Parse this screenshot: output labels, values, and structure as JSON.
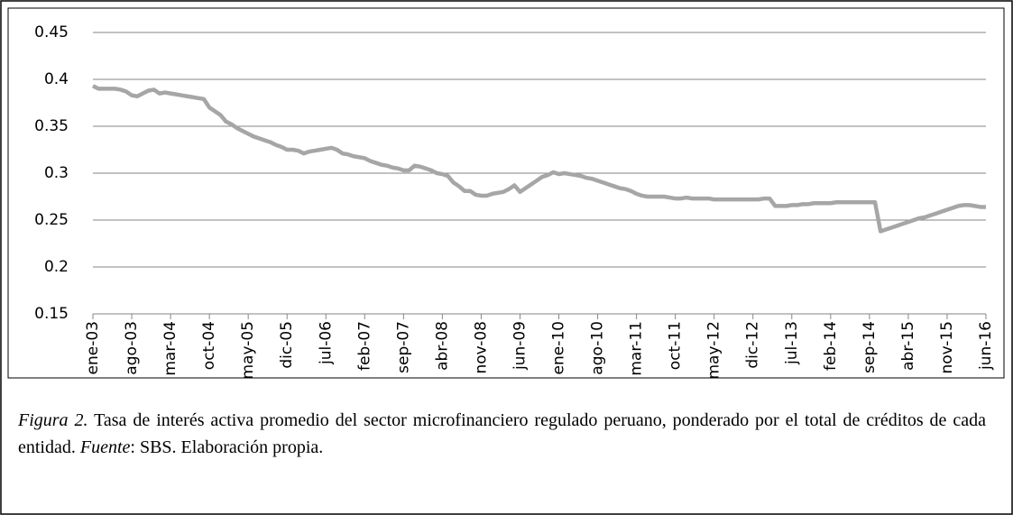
{
  "chart_data": {
    "type": "line",
    "categories": [
      "ene-03",
      null,
      null,
      null,
      null,
      null,
      null,
      "ago-03",
      null,
      null,
      null,
      null,
      null,
      null,
      "mar-04",
      null,
      null,
      null,
      null,
      null,
      null,
      "oct-04",
      null,
      null,
      null,
      null,
      null,
      null,
      "may-05",
      null,
      null,
      null,
      null,
      null,
      null,
      "dic-05",
      null,
      null,
      null,
      null,
      null,
      null,
      "jul-06",
      null,
      null,
      null,
      null,
      null,
      null,
      "feb-07",
      null,
      null,
      null,
      null,
      null,
      null,
      "sep-07",
      null,
      null,
      null,
      null,
      null,
      null,
      "abr-08",
      null,
      null,
      null,
      null,
      null,
      null,
      "nov-08",
      null,
      null,
      null,
      null,
      null,
      null,
      "jun-09",
      null,
      null,
      null,
      null,
      null,
      null,
      "ene-10",
      null,
      null,
      null,
      null,
      null,
      null,
      "ago-10",
      null,
      null,
      null,
      null,
      null,
      null,
      "mar-11",
      null,
      null,
      null,
      null,
      null,
      null,
      "oct-11",
      null,
      null,
      null,
      null,
      null,
      null,
      "may-12",
      null,
      null,
      null,
      null,
      null,
      null,
      "dic-12",
      null,
      null,
      null,
      null,
      null,
      null,
      "jul-13",
      null,
      null,
      null,
      null,
      null,
      null,
      "feb-14",
      null,
      null,
      null,
      null,
      null,
      null,
      "sep-14",
      null,
      null,
      null,
      null,
      null,
      null,
      "abr-15",
      null,
      null,
      null,
      null,
      null,
      null,
      "nov-15",
      null,
      null,
      null,
      null,
      null,
      null,
      "jun-16"
    ],
    "series": [
      {
        "color": "#a6a6a6",
        "values": [
          0.393,
          0.39,
          0.39,
          0.39,
          0.39,
          0.389,
          0.387,
          0.383,
          0.382,
          0.385,
          0.388,
          0.389,
          0.385,
          0.386,
          0.385,
          0.384,
          0.383,
          0.382,
          0.381,
          0.38,
          0.379,
          0.37,
          0.366,
          0.362,
          0.355,
          0.352,
          0.348,
          0.345,
          0.342,
          0.339,
          0.337,
          0.335,
          0.333,
          0.33,
          0.328,
          0.325,
          0.325,
          0.324,
          0.321,
          0.323,
          0.324,
          0.325,
          0.326,
          0.327,
          0.325,
          0.321,
          0.32,
          0.318,
          0.317,
          0.316,
          0.313,
          0.311,
          0.309,
          0.308,
          0.306,
          0.305,
          0.303,
          0.303,
          0.308,
          0.307,
          0.305,
          0.303,
          0.3,
          0.299,
          0.297,
          0.29,
          0.286,
          0.281,
          0.281,
          0.277,
          0.276,
          0.276,
          0.278,
          0.279,
          0.28,
          0.283,
          0.287,
          0.28,
          0.284,
          0.288,
          0.292,
          0.296,
          0.298,
          0.301,
          0.299,
          0.3,
          0.299,
          0.298,
          0.297,
          0.295,
          0.294,
          0.292,
          0.29,
          0.288,
          0.286,
          0.284,
          0.283,
          0.281,
          0.278,
          0.276,
          0.275,
          0.275,
          0.275,
          0.275,
          0.274,
          0.273,
          0.273,
          0.274,
          0.273,
          0.273,
          0.273,
          0.273,
          0.272,
          0.272,
          0.272,
          0.272,
          0.272,
          0.272,
          0.272,
          0.272,
          0.272,
          0.273,
          0.273,
          0.265,
          0.265,
          0.265,
          0.266,
          0.266,
          0.267,
          0.267,
          0.268,
          0.268,
          0.268,
          0.268,
          0.269,
          0.269,
          0.269,
          0.269,
          0.269,
          0.269,
          0.269,
          0.269,
          0.238,
          0.24,
          0.242,
          0.244,
          0.246,
          0.248,
          0.25,
          0.252,
          0.253,
          0.255,
          0.257,
          0.259,
          0.261,
          0.263,
          0.265,
          0.266,
          0.266,
          0.265,
          0.264,
          0.264
        ]
      }
    ],
    "ylim": [
      0.15,
      0.45
    ],
    "yticks": [
      0.15,
      0.2,
      0.25,
      0.3,
      0.35,
      0.4,
      0.45
    ],
    "grid": true
  },
  "caption": {
    "figure_label": "Figura 2.",
    "text": "Tasa de interés activa promedio del sector microfinanciero regulado peruano, ponderado por el total de créditos de cada entidad.",
    "source_label": "Fuente",
    "source_text": ": SBS. Elaboración propia."
  }
}
